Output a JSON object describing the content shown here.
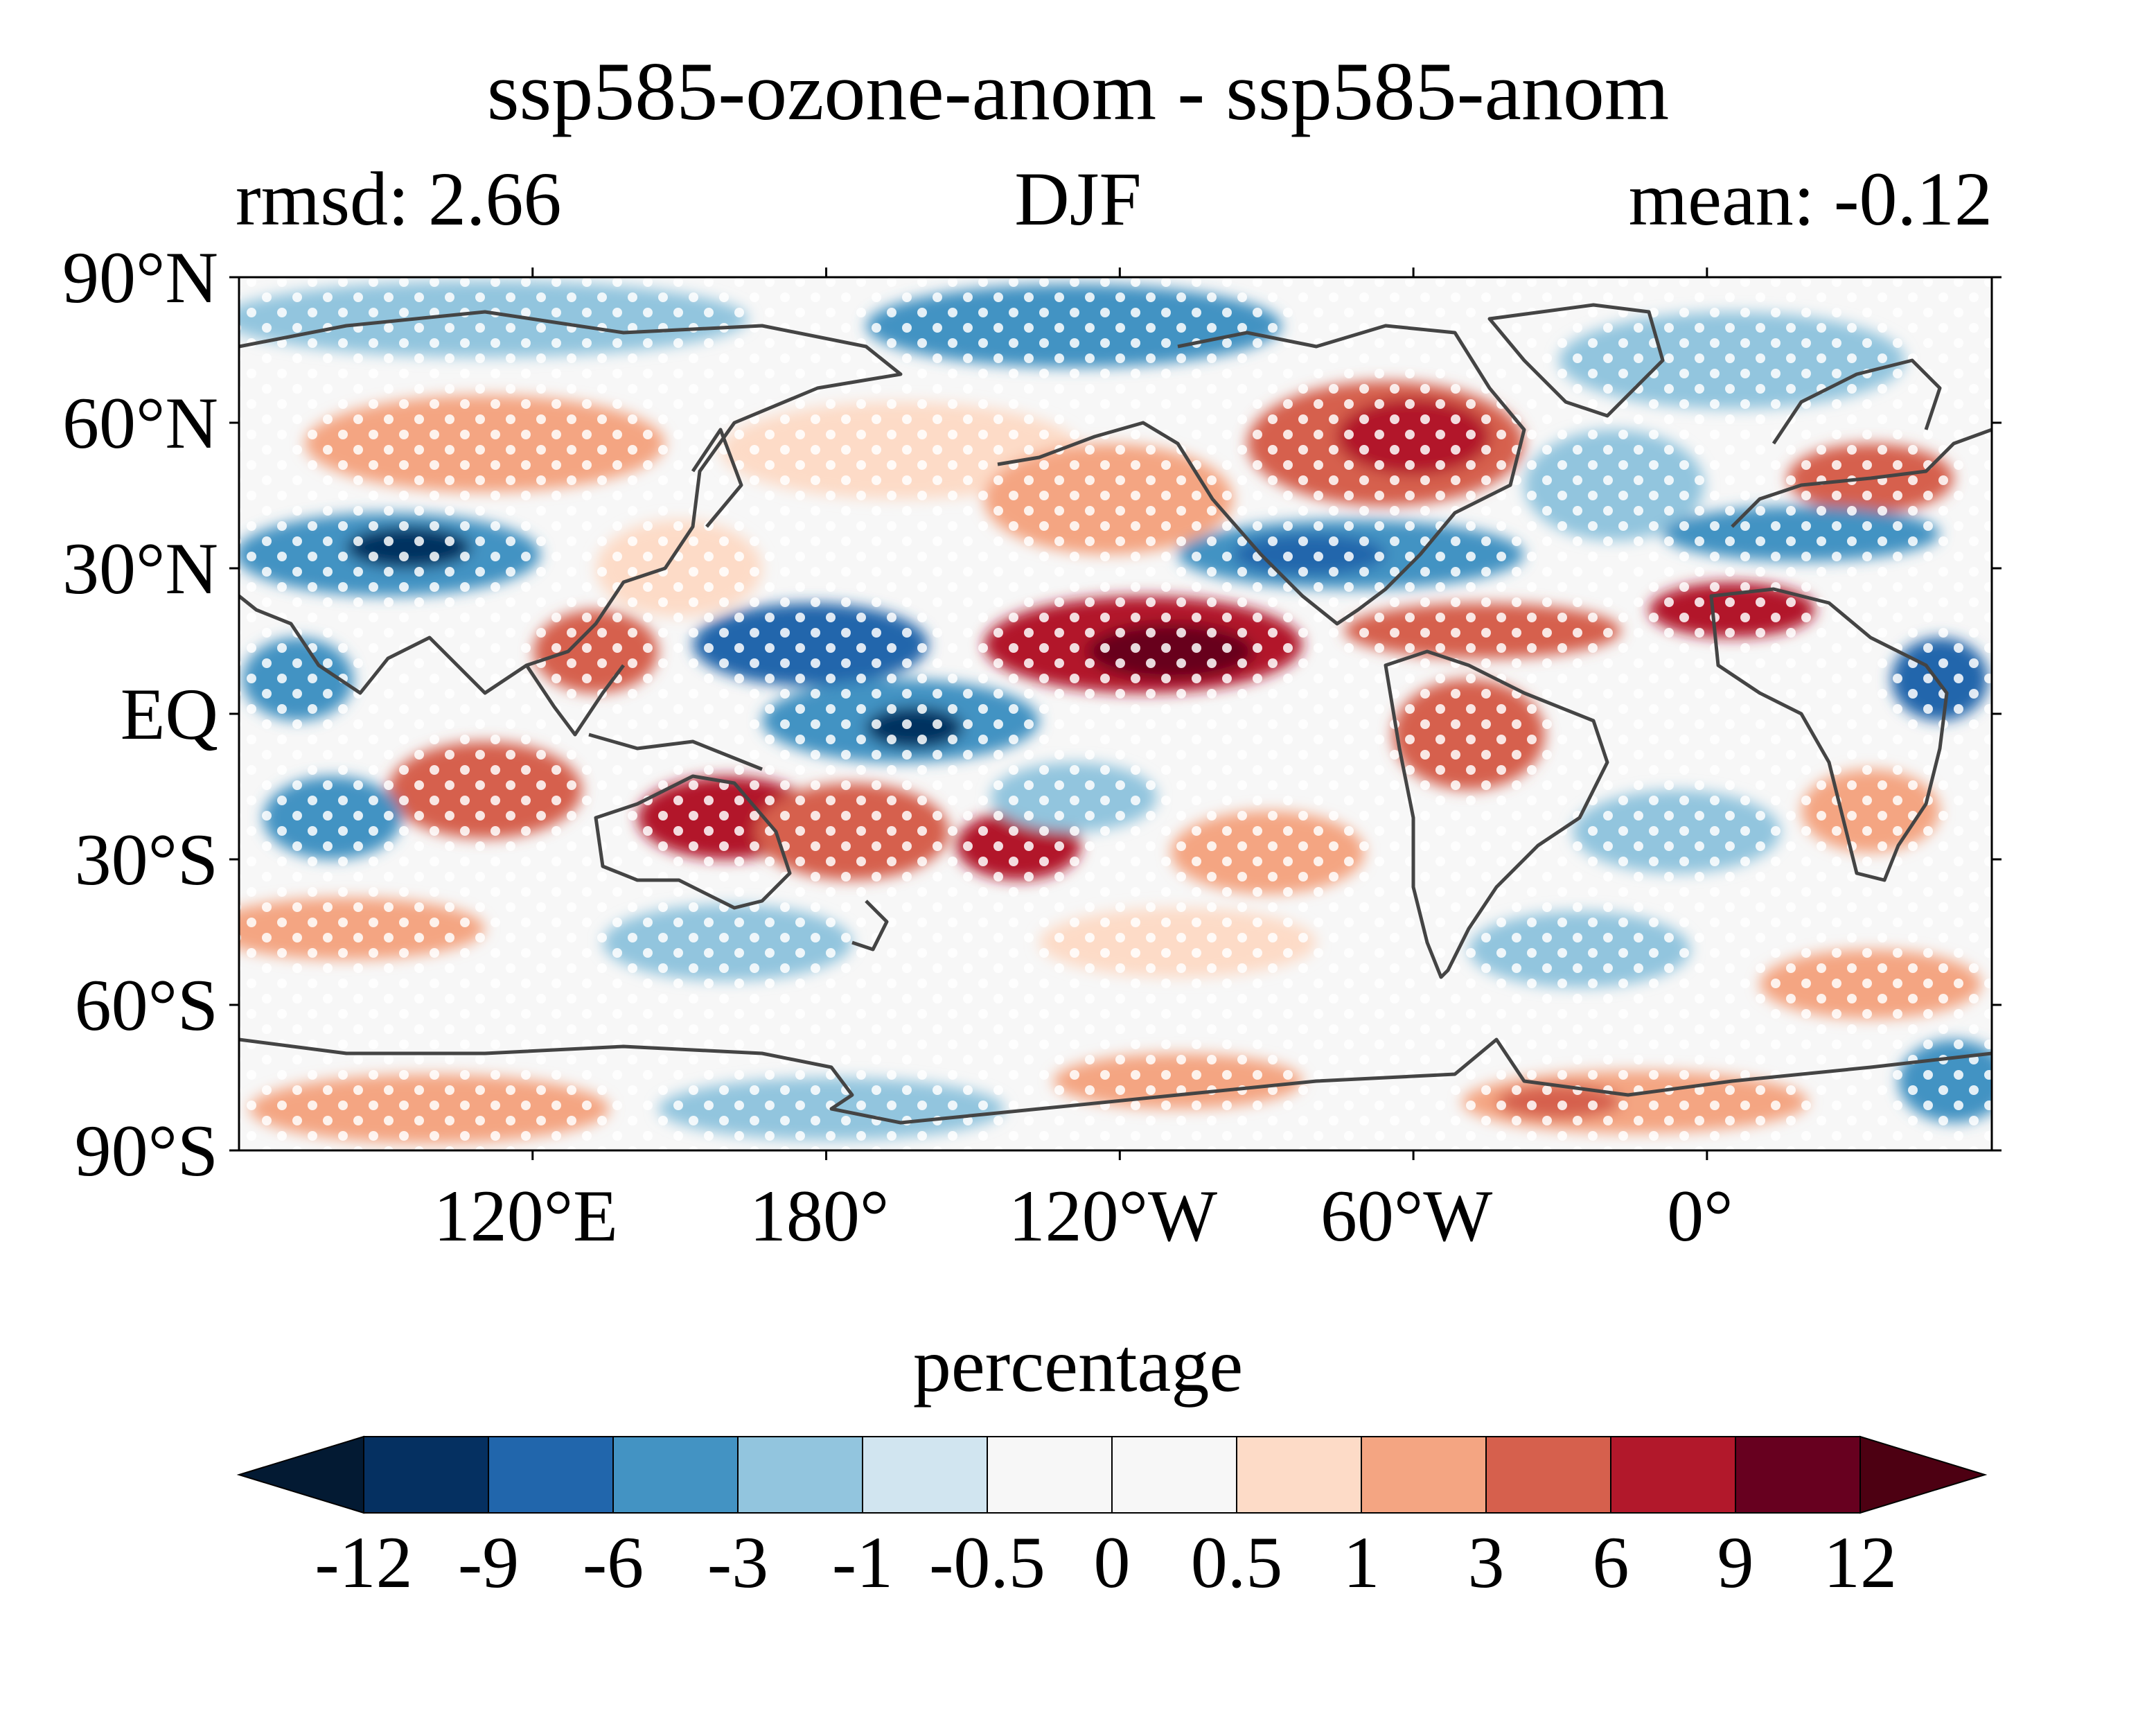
{
  "title": "ssp585-ozone-anom - ssp585-anom",
  "subtitle_left": "rmsd: 2.66",
  "subtitle_center": "DJF",
  "subtitle_right": "mean: -0.12",
  "lat_ticks": [
    "90°N",
    "60°N",
    "30°N",
    "EQ",
    "30°S",
    "60°S",
    "90°S"
  ],
  "lon_ticks": [
    "120°E",
    "180°",
    "120°W",
    "60°W",
    "0°"
  ],
  "colorbar": {
    "label": "percentage",
    "levels": [
      "-12",
      "-9",
      "-6",
      "-3",
      "-1",
      "-0.5",
      "0",
      "0.5",
      "1",
      "3",
      "6",
      "9",
      "12"
    ],
    "colors": [
      "#053061",
      "#2166ac",
      "#4393c3",
      "#92c5de",
      "#d1e5f0",
      "#f7f7f7",
      "#f7f7f7",
      "#fddbc7",
      "#f4a582",
      "#d6604d",
      "#b2182b",
      "#67001f"
    ],
    "under_color": "#031a33",
    "over_color": "#4d0012"
  },
  "colors": {
    "land_outline": "#444444",
    "stipple": "#ffffff"
  }
}
